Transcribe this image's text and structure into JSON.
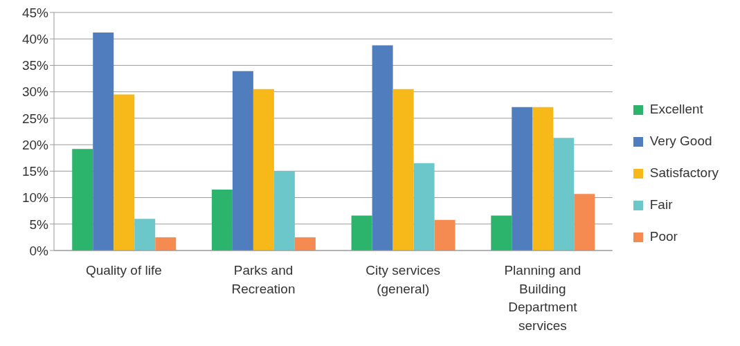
{
  "chart_data": {
    "type": "bar",
    "categories": [
      "Quality of life",
      "Parks and Recreation",
      "City services (general)",
      "Planning and Building Department services"
    ],
    "series": [
      {
        "name": "Excellent",
        "color": "#2db46c",
        "values": [
          19.2,
          11.5,
          6.6,
          6.6
        ]
      },
      {
        "name": "Very Good",
        "color": "#4f7dbd",
        "values": [
          41.2,
          33.9,
          38.8,
          27.1
        ]
      },
      {
        "name": "Satisfactory",
        "color": "#f6b919",
        "values": [
          29.5,
          30.5,
          30.5,
          27.1
        ]
      },
      {
        "name": "Fair",
        "color": "#6cc7cb",
        "values": [
          6,
          15,
          16.5,
          21.3
        ]
      },
      {
        "name": "Poor",
        "color": "#f58b50",
        "values": [
          2.5,
          2.5,
          5.8,
          10.7
        ]
      }
    ],
    "ylim": [
      0,
      45
    ],
    "yticks": [
      {
        "value": 0,
        "label": "0%"
      },
      {
        "value": 5,
        "label": "5%"
      },
      {
        "value": 10,
        "label": "10%"
      },
      {
        "value": 15,
        "label": "15%"
      },
      {
        "value": 20,
        "label": "20%"
      },
      {
        "value": 25,
        "label": "25%"
      },
      {
        "value": 30,
        "label": "30%"
      },
      {
        "value": 35,
        "label": "35%"
      },
      {
        "value": 40,
        "label": "40%"
      },
      {
        "value": 45,
        "label": "45%"
      }
    ],
    "grid": "y",
    "legend": "right"
  }
}
